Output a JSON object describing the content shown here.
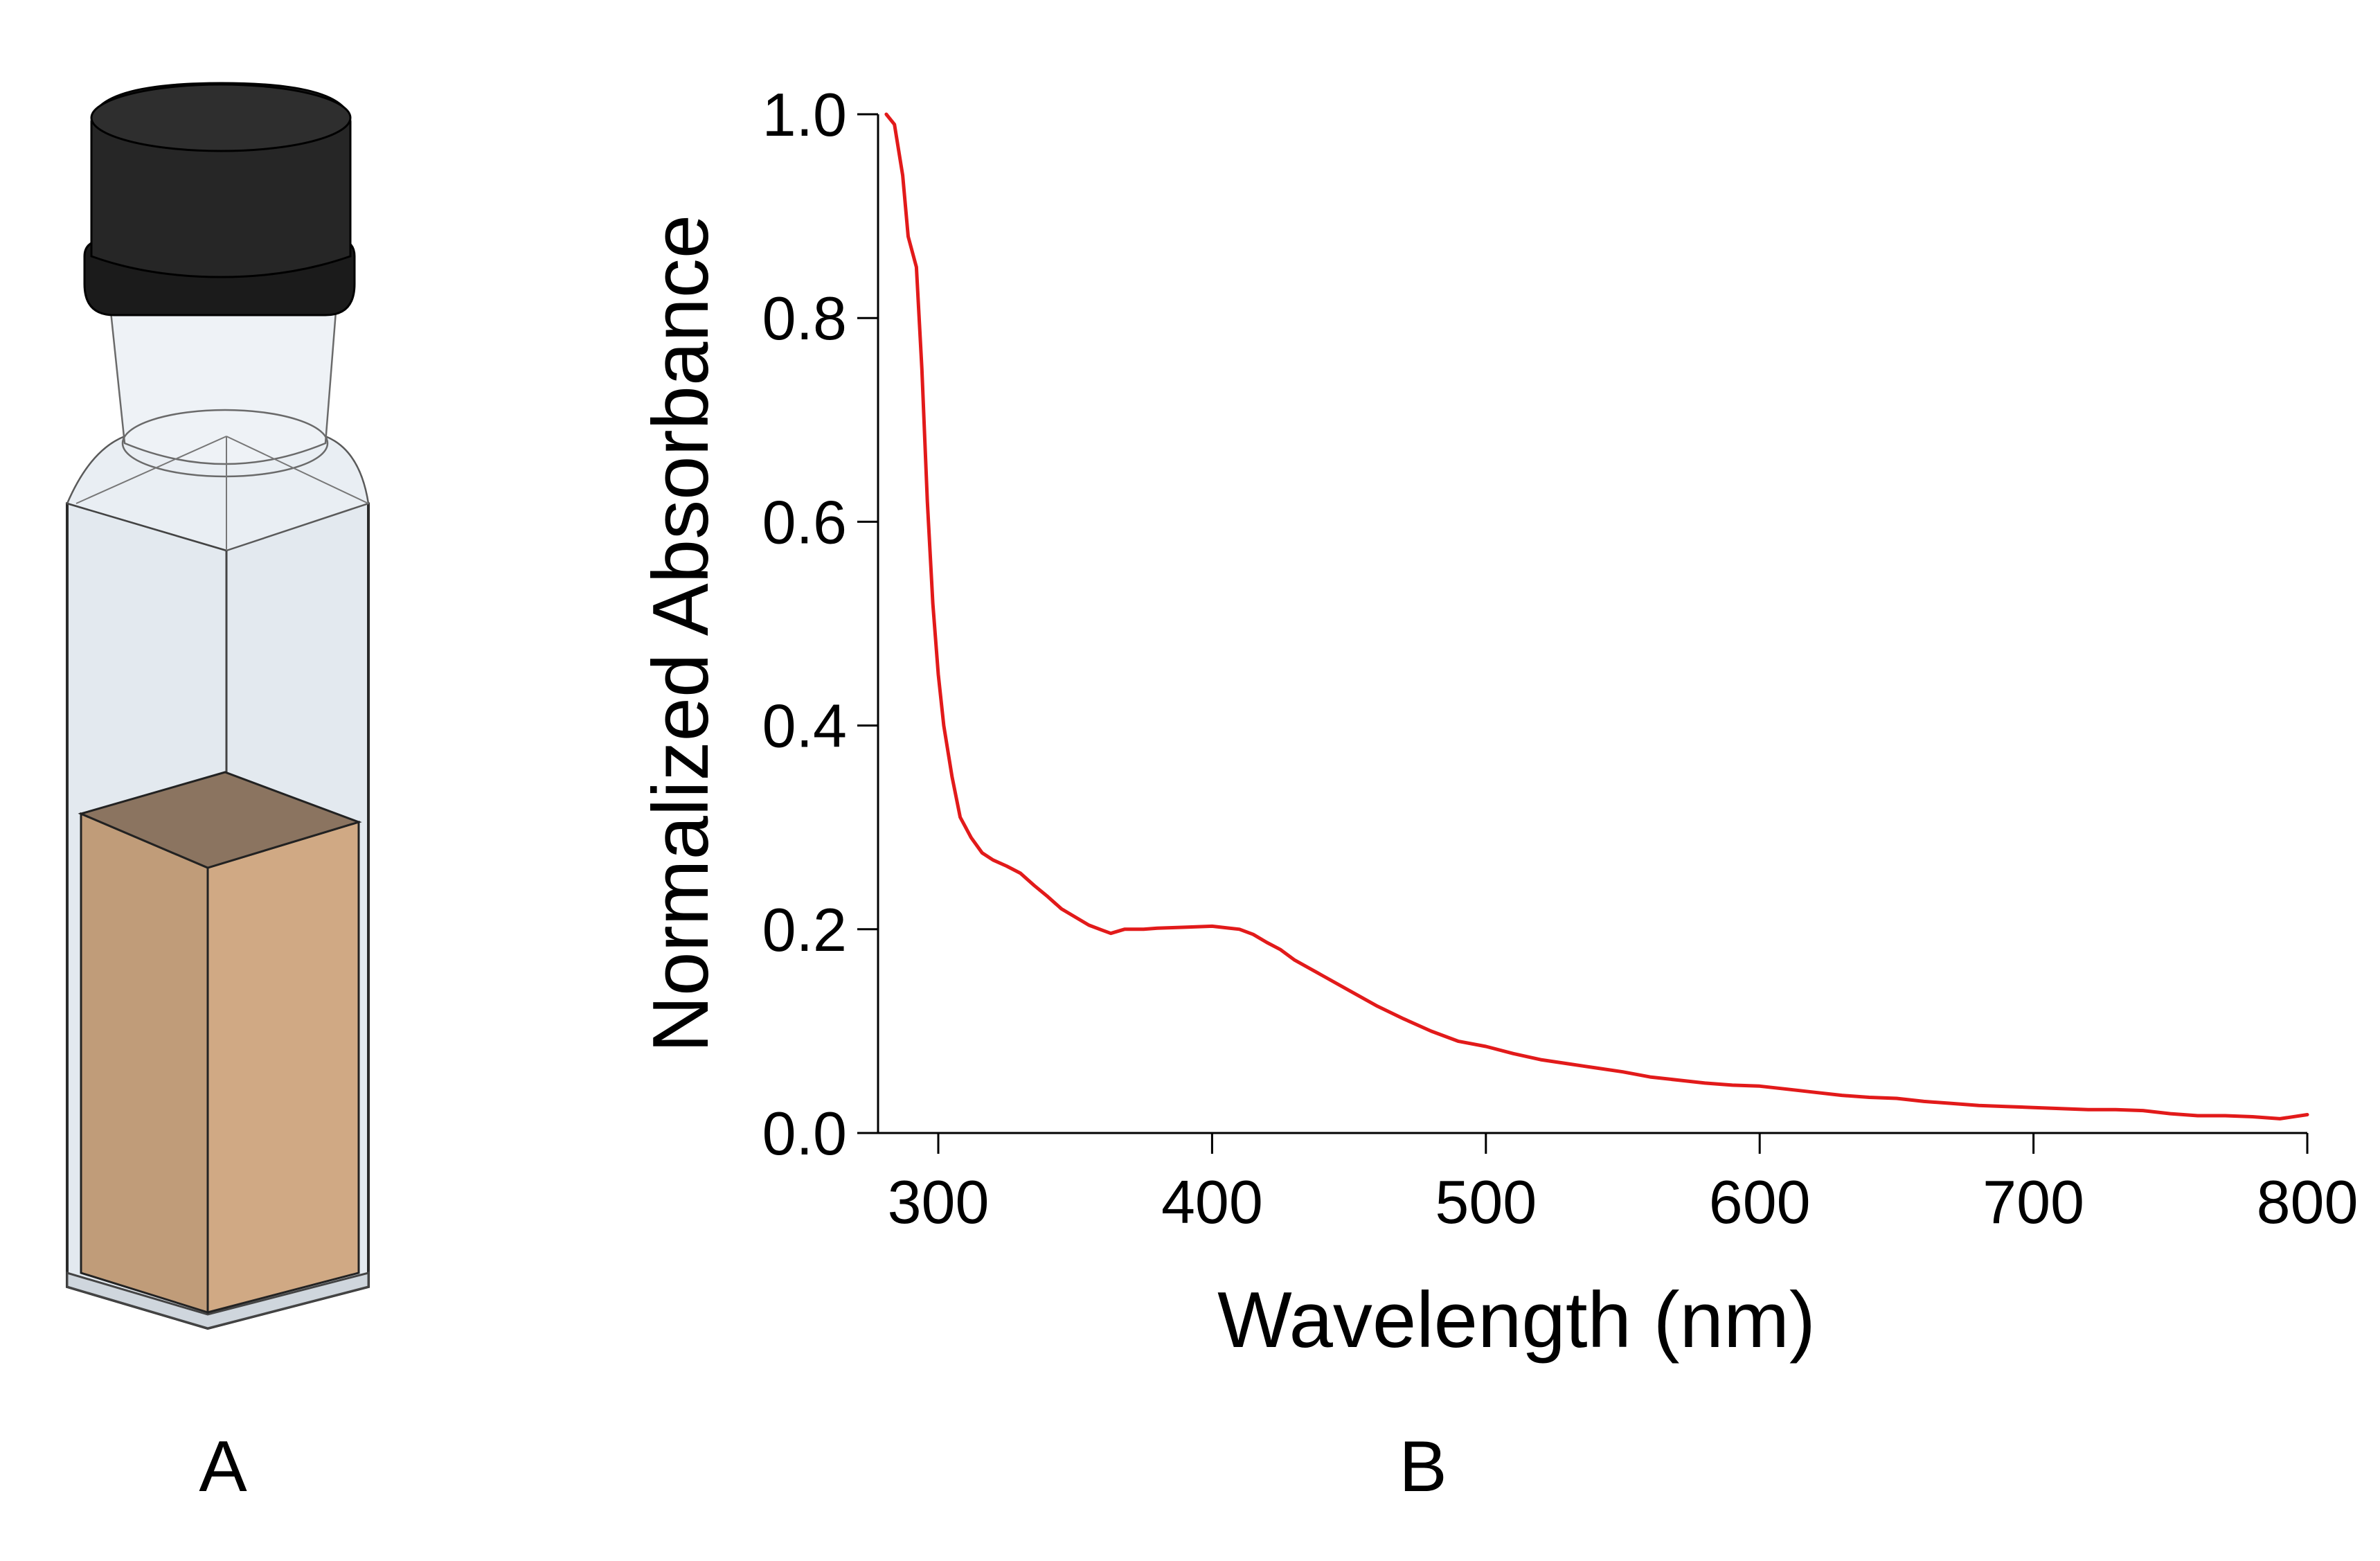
{
  "panels": {
    "a_label": "A",
    "b_label": "B"
  },
  "colors": {
    "cap": "#1e1e1e",
    "glass": "#e3e9ef",
    "liquid_front": "#d0a984",
    "liquid_side": "#c09c79",
    "liquid_top": "#8b7460",
    "curve": "#e21a1a"
  },
  "chart_data": {
    "type": "line",
    "title": "",
    "xlabel": "Wavelength (nm)",
    "ylabel": "Normalized Absorbance",
    "xlim": [
      278,
      800
    ],
    "ylim": [
      0,
      1.0
    ],
    "xticks": [
      300,
      400,
      500,
      600,
      700,
      800
    ],
    "xtick_labels": [
      "300",
      "400",
      "500",
      "600",
      "700",
      "800"
    ],
    "yticks": [
      0,
      0.2,
      0.4,
      0.6,
      0.8,
      1.0
    ],
    "ytick_labels": [
      "0.0",
      "0.2",
      "0.4",
      "0.6",
      "0.8",
      "1.0"
    ],
    "grid": false,
    "legend": "none",
    "series": [
      {
        "color": "#e21a1a",
        "points": [
          [
            281,
            1.0
          ],
          [
            284,
            0.99
          ],
          [
            287,
            0.94
          ],
          [
            289,
            0.88
          ],
          [
            292,
            0.85
          ],
          [
            294,
            0.75
          ],
          [
            296,
            0.62
          ],
          [
            298,
            0.52
          ],
          [
            300,
            0.45
          ],
          [
            302,
            0.4
          ],
          [
            305,
            0.35
          ],
          [
            308,
            0.31
          ],
          [
            312,
            0.29
          ],
          [
            316,
            0.275
          ],
          [
            320,
            0.268
          ],
          [
            325,
            0.262
          ],
          [
            330,
            0.255
          ],
          [
            335,
            0.243
          ],
          [
            340,
            0.232
          ],
          [
            345,
            0.22
          ],
          [
            350,
            0.212
          ],
          [
            355,
            0.204
          ],
          [
            360,
            0.199
          ],
          [
            363,
            0.196
          ],
          [
            368,
            0.2
          ],
          [
            375,
            0.2
          ],
          [
            380,
            0.201
          ],
          [
            390,
            0.202
          ],
          [
            400,
            0.203
          ],
          [
            410,
            0.2
          ],
          [
            415,
            0.195
          ],
          [
            420,
            0.187
          ],
          [
            425,
            0.18
          ],
          [
            430,
            0.17
          ],
          [
            440,
            0.155
          ],
          [
            450,
            0.14
          ],
          [
            460,
            0.125
          ],
          [
            470,
            0.112
          ],
          [
            480,
            0.1
          ],
          [
            490,
            0.09
          ],
          [
            500,
            0.085
          ],
          [
            510,
            0.078
          ],
          [
            520,
            0.072
          ],
          [
            530,
            0.068
          ],
          [
            540,
            0.064
          ],
          [
            550,
            0.06
          ],
          [
            560,
            0.055
          ],
          [
            570,
            0.052
          ],
          [
            580,
            0.049
          ],
          [
            590,
            0.047
          ],
          [
            600,
            0.046
          ],
          [
            610,
            0.043
          ],
          [
            620,
            0.04
          ],
          [
            630,
            0.037
          ],
          [
            640,
            0.035
          ],
          [
            650,
            0.034
          ],
          [
            660,
            0.031
          ],
          [
            670,
            0.029
          ],
          [
            680,
            0.027
          ],
          [
            690,
            0.026
          ],
          [
            700,
            0.025
          ],
          [
            710,
            0.024
          ],
          [
            720,
            0.023
          ],
          [
            730,
            0.023
          ],
          [
            740,
            0.022
          ],
          [
            750,
            0.019
          ],
          [
            760,
            0.017
          ],
          [
            770,
            0.017
          ],
          [
            780,
            0.016
          ],
          [
            790,
            0.014
          ],
          [
            800,
            0.018
          ]
        ]
      }
    ]
  }
}
